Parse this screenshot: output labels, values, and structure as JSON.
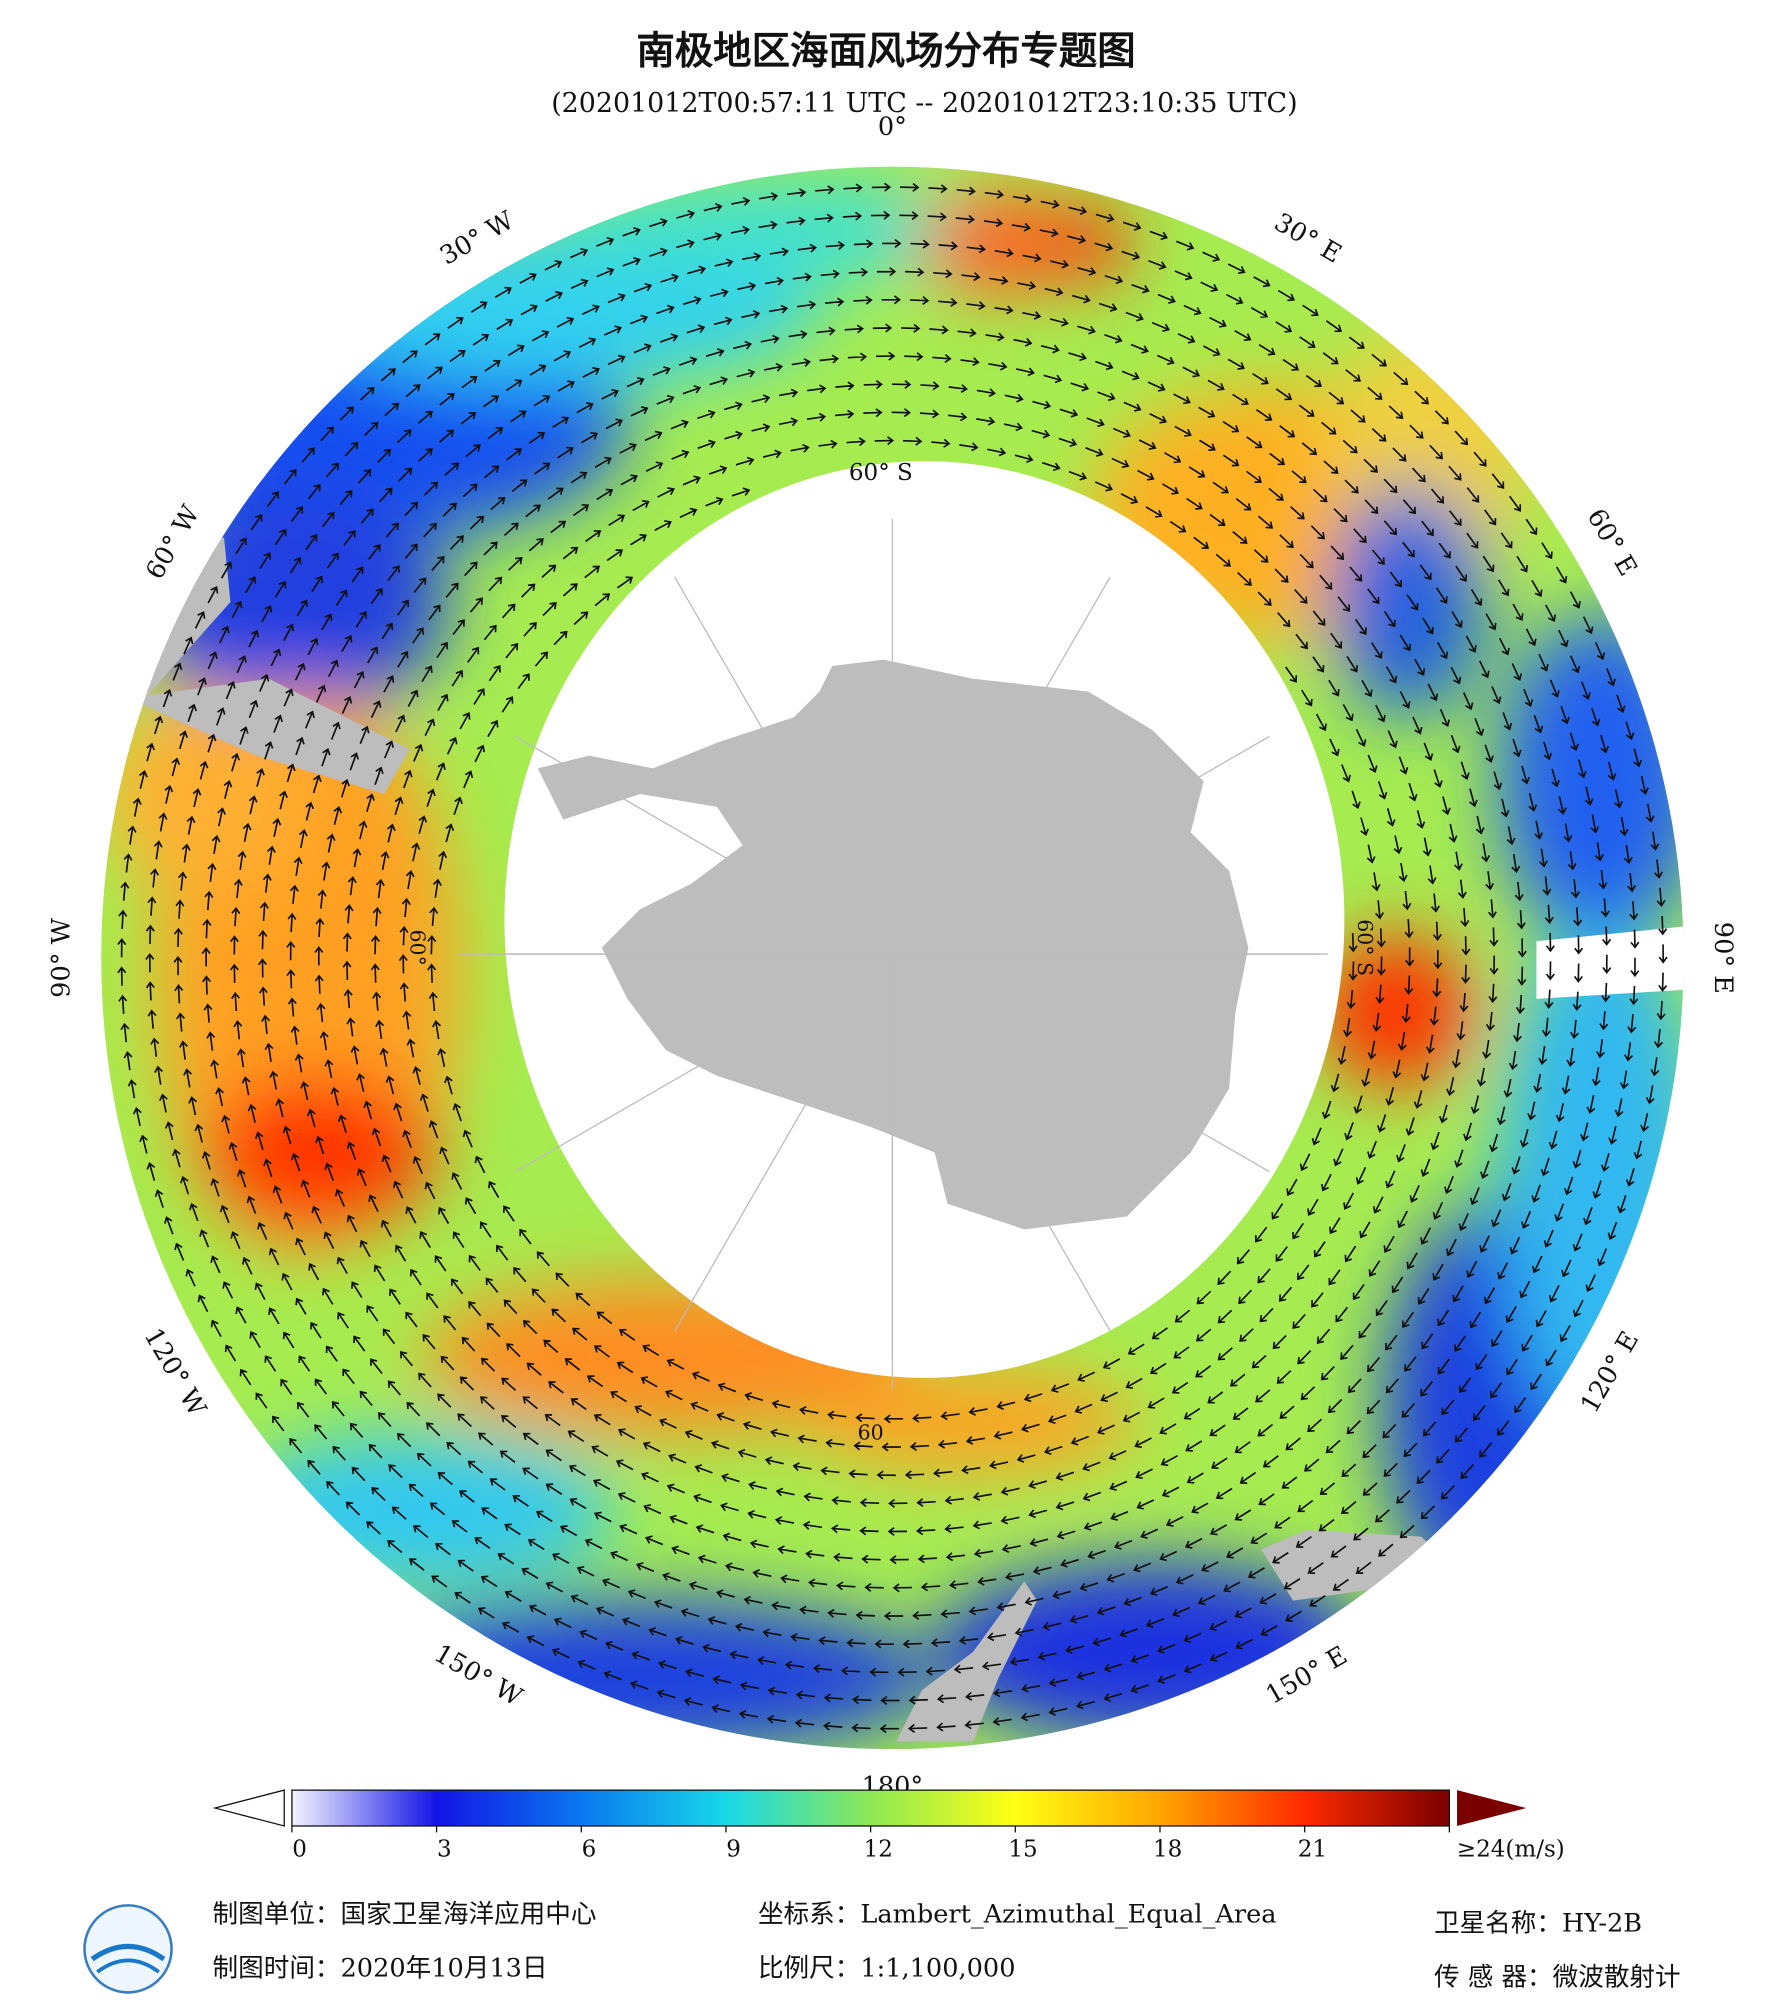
{
  "header": {
    "title": "南极地区海面风场分布专题图",
    "subtitle": "(20201012T00:57:11 UTC -- 20201012T23:10:35 UTC)"
  },
  "map": {
    "lon_labels": [
      "0°",
      "30° E",
      "60° E",
      "90° E",
      "120° E",
      "150° E",
      "180°",
      "150° W",
      "120° W",
      "90° W",
      "60° W",
      "30° W"
    ],
    "lat_labels": [
      "60° S",
      "60",
      "60°",
      "60° S"
    ]
  },
  "colorbar": {
    "range": [
      0,
      24
    ],
    "ticks": [
      0,
      3,
      6,
      9,
      12,
      15,
      18,
      21,
      {
        "value": 24,
        "label": "≥24(m/s)"
      }
    ],
    "colors": [
      "#f4f4ff",
      "#1414e6",
      "#0a78f0",
      "#18d8e8",
      "#8ee855",
      "#ffff14",
      "#ffa500",
      "#ff2a00",
      "#7a0000"
    ]
  },
  "footer": {
    "left": [
      "制图单位：国家卫星海洋应用中心",
      "制图时间：2020年10月13日"
    ],
    "middle": [
      "坐标系：Lambert_Azimuthal_Equal_Area",
      "比例尺：1:1,100,000"
    ],
    "right": [
      "卫星名称：HY-2B",
      "传 感 器：微波散射计"
    ]
  }
}
